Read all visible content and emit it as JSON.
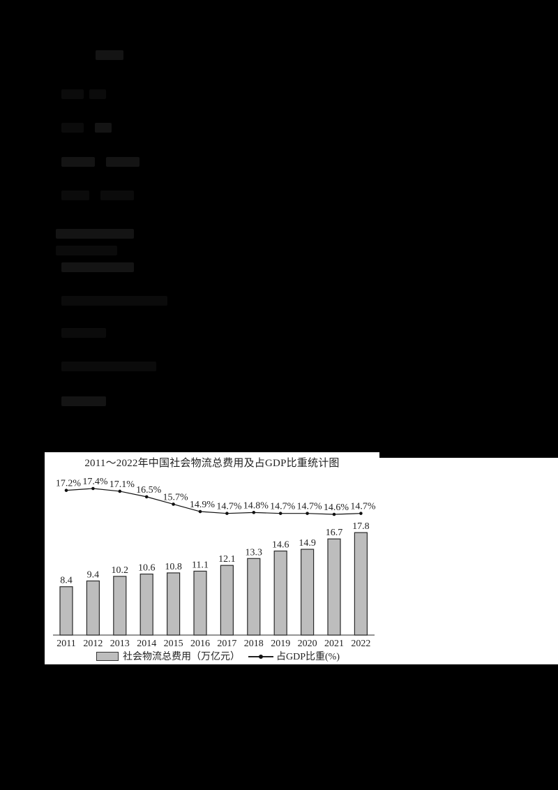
{
  "page": {
    "background": "#000000",
    "upper_region_note": "illegible dark text artifacts"
  },
  "chart_data": {
    "type": "bar",
    "title": "2011～2022年中国社会物流总费用及占GDP比重统计图",
    "categories": [
      "2011",
      "2012",
      "2013",
      "2014",
      "2015",
      "2016",
      "2017",
      "2018",
      "2019",
      "2020",
      "2021",
      "2022"
    ],
    "series": [
      {
        "name": "社会物流总费用（万亿元）",
        "type": "bar",
        "values": [
          8.4,
          9.4,
          10.2,
          10.6,
          10.8,
          11.1,
          12.1,
          13.3,
          14.6,
          14.9,
          16.7,
          17.8
        ],
        "labels": [
          "8.4",
          "9.4",
          "10.2",
          "10.6",
          "10.8",
          "11.1",
          "12.1",
          "13.3",
          "14.6",
          "14.9",
          "16.7",
          "17.8"
        ],
        "color": "#bdbdbd"
      },
      {
        "name": "占GDP比重(%)",
        "type": "line",
        "values": [
          17.2,
          17.4,
          17.1,
          16.5,
          15.7,
          14.9,
          14.7,
          14.8,
          14.7,
          14.7,
          14.6,
          14.7
        ],
        "labels": [
          "17.2%",
          "17.4%",
          "17.1%",
          "16.5%",
          "15.7%",
          "14.9%",
          "14.7%",
          "14.8%",
          "14.7%",
          "14.7%",
          "14.6%",
          "14.7%"
        ],
        "color": "#111111"
      }
    ],
    "xlabel": "",
    "ylabel": "",
    "grid": false,
    "legend_position": "bottom"
  },
  "legend": {
    "bar_label": "社会物流总费用（万亿元）",
    "line_label": "占GDP比重(%)"
  }
}
